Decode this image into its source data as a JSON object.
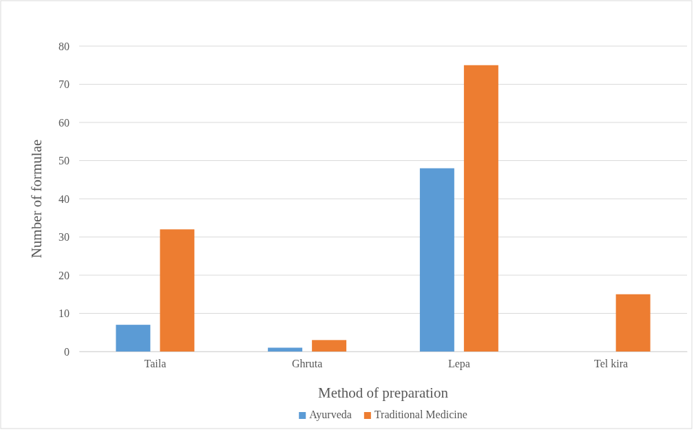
{
  "chart_data": {
    "type": "bar",
    "xlabel": "Method of preparation",
    "ylabel": "Number of formulae",
    "categories": [
      "Taila",
      "Ghruta",
      "Lepa",
      "Tel kira"
    ],
    "series": [
      {
        "name": "Ayurveda",
        "color": "#5b9bd5",
        "values": [
          7,
          1,
          48,
          0
        ]
      },
      {
        "name": "Traditional Medicine",
        "color": "#ed7d31",
        "values": [
          32,
          3,
          75,
          15
        ]
      }
    ],
    "ylim": [
      0,
      80
    ],
    "yticks": [
      0,
      10,
      20,
      30,
      40,
      50,
      60,
      70,
      80
    ],
    "grid": "y",
    "legend": "bottom"
  }
}
